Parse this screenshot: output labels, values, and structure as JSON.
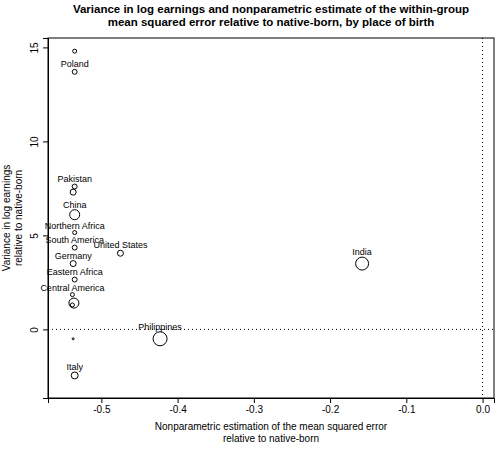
{
  "chart_data": {
    "type": "scatter",
    "title": [
      "Variance in log earnings and nonparametric estimate of the within-group",
      "mean squared error relative to native-born, by place of birth"
    ],
    "x_label": [
      "Nonparametric estimation of the mean squared error",
      "relative to native-born"
    ],
    "y_label": [
      "Variance in log earnings",
      "relative to native-born"
    ],
    "x": [
      -0.535,
      -0.535,
      -0.535,
      -0.537,
      -0.535,
      -0.535,
      -0.535,
      -0.537,
      -0.535,
      -0.538,
      -0.536,
      -0.538,
      -0.537,
      -0.475,
      -0.423,
      -0.158,
      -0.535
    ],
    "y": [
      14.8,
      13.7,
      7.6,
      7.3,
      6.1,
      5.15,
      4.35,
      3.5,
      2.65,
      1.85,
      1.4,
      1.3,
      -0.5,
      4.05,
      -0.5,
      3.5,
      -2.45
    ],
    "sizes": [
      4,
      6,
      6,
      9,
      25,
      4,
      6,
      9,
      6,
      4,
      25,
      4,
      1,
      9,
      49,
      42,
      12
    ],
    "labels": [
      null,
      "Poland",
      "Pakistan",
      null,
      "China",
      "Northern Africa",
      "South America",
      "Germany",
      "Eastern Africa",
      "Central America",
      null,
      null,
      null,
      "United States",
      "Philippines",
      "India",
      "Italy"
    ],
    "hlines": [
      0
    ],
    "vlines": [
      0
    ],
    "xlim": [
      -0.57,
      0.015
    ],
    "ylim": [
      -3.65,
      15.5
    ],
    "xticks": [
      -0.5,
      -0.4,
      -0.3,
      -0.2,
      -0.1,
      {
        "value": 0,
        "label": "0.0"
      }
    ],
    "yticks": [
      0,
      5,
      10,
      15
    ],
    "color": "#000000",
    "marker": "open-circle"
  }
}
